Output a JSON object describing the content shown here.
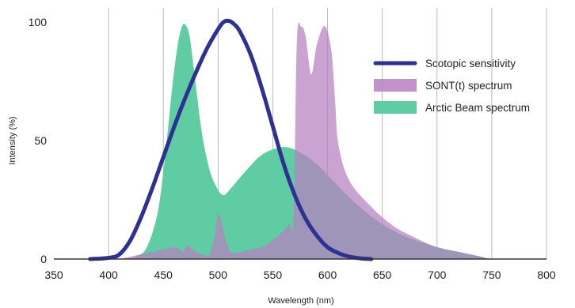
{
  "chart_data": {
    "type": "area",
    "xlabel": "Wavelength (nm)",
    "ylabel": "Intensity (%)",
    "xlim": [
      350,
      800
    ],
    "ylim": [
      0,
      100
    ],
    "x_ticks": [
      350,
      400,
      450,
      500,
      550,
      600,
      650,
      700,
      750,
      800
    ],
    "y_ticks": [
      0,
      50,
      100
    ],
    "grid": "vertical",
    "legend_position": "top-right",
    "colors": {
      "scotopic": "#2e3192",
      "sont": "#b77fc1",
      "arctic": "#5fcca3"
    },
    "series": [
      {
        "name": "Scotopic sensitivity",
        "kind": "line",
        "color_key": "scotopic",
        "points": [
          [
            383,
            0
          ],
          [
            400,
            0.5
          ],
          [
            410,
            2
          ],
          [
            420,
            8
          ],
          [
            430,
            18
          ],
          [
            440,
            30
          ],
          [
            450,
            43
          ],
          [
            460,
            56
          ],
          [
            470,
            68
          ],
          [
            480,
            79
          ],
          [
            490,
            89
          ],
          [
            500,
            97
          ],
          [
            505,
            100
          ],
          [
            510,
            100.5
          ],
          [
            515,
            99
          ],
          [
            520,
            96
          ],
          [
            530,
            86
          ],
          [
            540,
            72
          ],
          [
            550,
            56
          ],
          [
            560,
            40
          ],
          [
            570,
            27
          ],
          [
            580,
            17
          ],
          [
            590,
            10
          ],
          [
            600,
            5
          ],
          [
            610,
            2.5
          ],
          [
            620,
            1
          ],
          [
            630,
            0.3
          ],
          [
            640,
            0
          ]
        ]
      },
      {
        "name": "SONT(t) spectrum",
        "kind": "area",
        "color_key": "sont",
        "points": [
          [
            410,
            0
          ],
          [
            420,
            1
          ],
          [
            430,
            2
          ],
          [
            440,
            3
          ],
          [
            450,
            4
          ],
          [
            460,
            5
          ],
          [
            465,
            4
          ],
          [
            468,
            3
          ],
          [
            472,
            6
          ],
          [
            477,
            4
          ],
          [
            485,
            2
          ],
          [
            492,
            2
          ],
          [
            497,
            10
          ],
          [
            500,
            19
          ],
          [
            503,
            16
          ],
          [
            507,
            8
          ],
          [
            512,
            3
          ],
          [
            520,
            3
          ],
          [
            530,
            4
          ],
          [
            540,
            5
          ],
          [
            550,
            8
          ],
          [
            560,
            12
          ],
          [
            565,
            15
          ],
          [
            569,
            18
          ],
          [
            572,
            92
          ],
          [
            576,
            98
          ],
          [
            580,
            94
          ],
          [
            585,
            78
          ],
          [
            590,
            90
          ],
          [
            596,
            98
          ],
          [
            600,
            96
          ],
          [
            604,
            86
          ],
          [
            607,
            66
          ],
          [
            610,
            48
          ],
          [
            620,
            33
          ],
          [
            640,
            22
          ],
          [
            660,
            14
          ],
          [
            680,
            9
          ],
          [
            700,
            5
          ],
          [
            720,
            3
          ],
          [
            740,
            1
          ],
          [
            750,
            0
          ]
        ]
      },
      {
        "name": "Arctic Beam spectrum",
        "kind": "area",
        "color_key": "arctic",
        "points": [
          [
            415,
            0
          ],
          [
            425,
            1
          ],
          [
            435,
            5
          ],
          [
            445,
            20
          ],
          [
            452,
            45
          ],
          [
            458,
            72
          ],
          [
            463,
            90
          ],
          [
            467,
            98
          ],
          [
            470,
            99
          ],
          [
            474,
            94
          ],
          [
            479,
            76
          ],
          [
            485,
            54
          ],
          [
            492,
            38
          ],
          [
            499,
            30
          ],
          [
            505,
            27
          ],
          [
            512,
            30
          ],
          [
            525,
            37
          ],
          [
            540,
            44
          ],
          [
            555,
            47
          ],
          [
            565,
            47
          ],
          [
            575,
            45
          ],
          [
            585,
            42
          ],
          [
            595,
            38
          ],
          [
            605,
            33
          ],
          [
            620,
            26
          ],
          [
            640,
            18
          ],
          [
            660,
            12
          ],
          [
            680,
            8
          ],
          [
            700,
            5
          ],
          [
            720,
            3
          ],
          [
            740,
            1
          ],
          [
            745,
            0
          ]
        ]
      }
    ]
  }
}
